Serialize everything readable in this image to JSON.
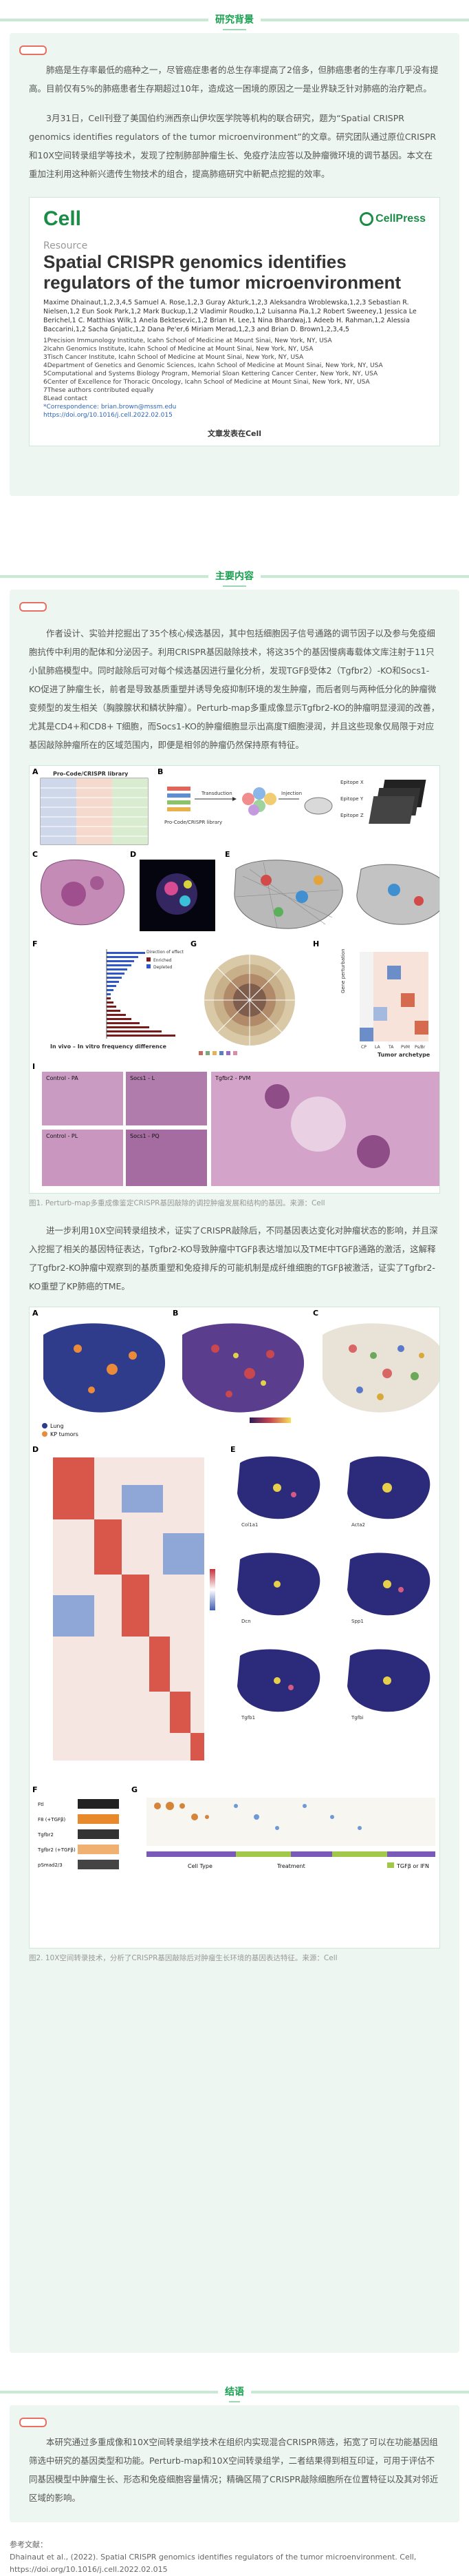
{
  "section_background": {
    "title": "研究背景"
  },
  "background_paragraphs": [
    "肺癌是生存率最低的癌种之一，尽管癌症患者的总生存率提高了2倍多，但肺癌患者的生存率几乎没有提高。目前仅有5%的肺癌患者生存期超过10年，造成这一困境的原因之一是业界缺乏针对肺癌的治疗靶点。",
    "3月31日，Cell刊登了美国伯约洲西奈山伊坎医学院等机构的联合研究，题为“Spatial CRISPR genomics identifies regulators of the tumor microenvironment”的文章。研究团队通过原位CRISPR和10X空间转录组学等技术，发现了控制肺部肿瘤生长、免疫疗法应答以及肿瘤微环境的调节基因。本文在重加注利用这种新兴遗传生物技术的组合，提高肺癌研究中新靶点挖掘的效率。"
  ],
  "paper": {
    "journal": "Cell",
    "publisher": "CellPress",
    "kind": "Resource",
    "title_line1": "Spatial CRISPR genomics identifies",
    "title_line2": "regulators of the tumor microenvironment",
    "authors": "Maxime Dhainaut,1,2,3,4,5 Samuel A. Rose,1,2,3 Guray Akturk,1,2,3 Aleksandra Wroblewska,1,2,3 Sebastian R. Nielsen,1,2 Eun Sook Park,1,2 Mark Buckup,1,2 Vladimir Roudko,1,2 Luisanna Pia,1,2 Robert Sweeney,1 Jessica Le Berichel,1 C. Matthias Wilk,1 Anela Bektesevic,1,2 Brian H. Lee,1 Nina Bhardwaj,1 Adeeb H. Rahman,1,2 Alessia Baccarini,1,2 Sacha Gnjatic,1,2 Dana Pe'er,6 Miriam Merad,1,2,3 and Brian D. Brown1,2,3,4,5",
    "affiliations": [
      "1Precision Immunology Institute, Icahn School of Medicine at Mount Sinai, New York, NY, USA",
      "2Icahn Genomics Institute, Icahn School of Medicine at Mount Sinai, New York, NY, USA",
      "3Tisch Cancer Institute, Icahn School of Medicine at Mount Sinai, New York, NY, USA",
      "4Department of Genetics and Genomic Sciences, Icahn School of Medicine at Mount Sinai, New York, NY, USA",
      "5Computational and Systems Biology Program, Memorial Sloan Kettering Cancer Center, New York, NY, USA",
      "6Center of Excellence for Thoracic Oncology, Icahn School of Medicine at Mount Sinai, New York, NY, USA",
      "7These authors contributed equally",
      "8Lead contact"
    ],
    "correspondence": "*Correspondence: brian.brown@mssm.edu",
    "doi": "https://doi.org/10.1016/j.cell.2022.02.015",
    "caption": "文章发表在Cell"
  },
  "section_main": {
    "title": "主要内容"
  },
  "main_paragraphs": [
    "作者设计、实验并挖掘出了35个核心候选基因，其中包括细胞因子信号通路的调节因子以及参与免疫细胞抗传中利用的配体和分泌因子。利用CRISPR基因敲除技术，将这35个的基因慢病毒载体文库注射于11只小鼠肺癌模型中。同时敲除后可对每个候选基因进行量化分析，发现TGFβ受体2（Tgfbr2）-KO和Socs1-KO促进了肿瘤生长，前者是导致基质重塑并诱导免疫抑制环境的发生肿瘤，而后者则与两种低分化的肿瘤微变频型的发生相关（胸腺腺状和鳞状肿瘤）。Perturb-map多重成像显示Tgfbr2-KO的肿瘤明显浸润的改善，尤其是CD4+和CD8+ T细胞，而Socs1-KO的肿瘤细胞显示出高度T细胞浸润，并且这些现象仅局限于对应基因敲除肿瘤所在的区域范围内，即便是相邻的肿瘤仍然保持原有特征。",
    "进一步利用10X空间转录组技术，证实了CRISPR敲除后，不同基因表达变化对肿瘤状态的影响，并且深入挖掘了相关的基因特征表达，Tgfbr2-KO导致肿瘤中TGFβ表达增加以及TME中TGFβ通路的激活，这解释了Tgfbr2-KO肿瘤中观察到的基质重塑和免疫排斥的可能机制是成纤维细胞的TGFβ被激活，证实了Tgfbr2-KO重塑了KP肺癌的TME。"
  ],
  "figure1": {
    "caption": "图1. Perturb-map多重成像鉴定CRISPR基因敲除的调控肿瘤发展和结构的基因。来源：Cell",
    "panels": [
      "A",
      "B",
      "C",
      "D",
      "E",
      "F",
      "G",
      "H",
      "I"
    ],
    "title_a": "Pro-Code/CRISPR library",
    "lib_b": "Pro-Code/CRISPR library",
    "transduction": "Transduction",
    "injection": "Injection",
    "epitopes": [
      "Epitope X",
      "Epitope Y",
      "Epitope Z"
    ],
    "xlabel_f": "In vivo – In vitro frequency difference",
    "legend_f_title": "Direction of effect",
    "legend_f_items": [
      "Enriched",
      "Depleted"
    ],
    "ylabel_h": "Gene perturbation",
    "xlabel_h": "Tumor archetype",
    "h_cols": [
      "CP",
      "LA",
      "TA",
      "PVM",
      "Ps/Br"
    ],
    "i_labels": [
      "Control - PA",
      "Socs1 - L",
      "Tgfbr2 - PVM",
      "Control - PL",
      "Socs1 - PQ"
    ]
  },
  "figure2": {
    "caption": "图2. 10X空间转录技术，分析了CRISPR基因敲除后对肿瘤生长环境的基因表达特征。来源：Cell",
    "panels": [
      "A",
      "B",
      "C",
      "D",
      "E",
      "F",
      "G"
    ],
    "legend_a": [
      "Lung",
      "KP tumors"
    ],
    "legend_g": "TGFβ or IFN",
    "g_xlabels": [
      "Cell Type",
      "Treatment"
    ],
    "f_labels": [
      "Ftl",
      "F8 (+TGFβ)",
      "Tgfbr2",
      "Tgfbr2 (+TGFβ)",
      "pSmad2/3"
    ],
    "e_genes": [
      "Col1a1",
      "Acta2",
      "Dcn",
      "Spp1",
      "Tgfb1",
      "Tgfbi"
    ]
  },
  "section_conclusion": {
    "title": "结语"
  },
  "conclusion_paragraph": "本研究通过多重成像和10X空间转录组学技术在组织内实现混合CRISPR筛选，拓宽了可以在功能基因组筛选中研究的基因类型和功能。Perturb-map和10X空间转录组学，二者结果得到相互印证，可用于评估不同基因模型中肿瘤生长、形态和免疫细胞容量情况；精确区隔了CRISPR敲除细胞所在位置特征以及其对邻近区域的影响。",
  "references": {
    "label": "参考文献：",
    "text": "Dhainaut et al., (2022). Spatial CRISPR genomics identifies regulators of the tumor microenvironment. Cell, https://doi.org/10.1016/j.cell.2022.02.015"
  }
}
